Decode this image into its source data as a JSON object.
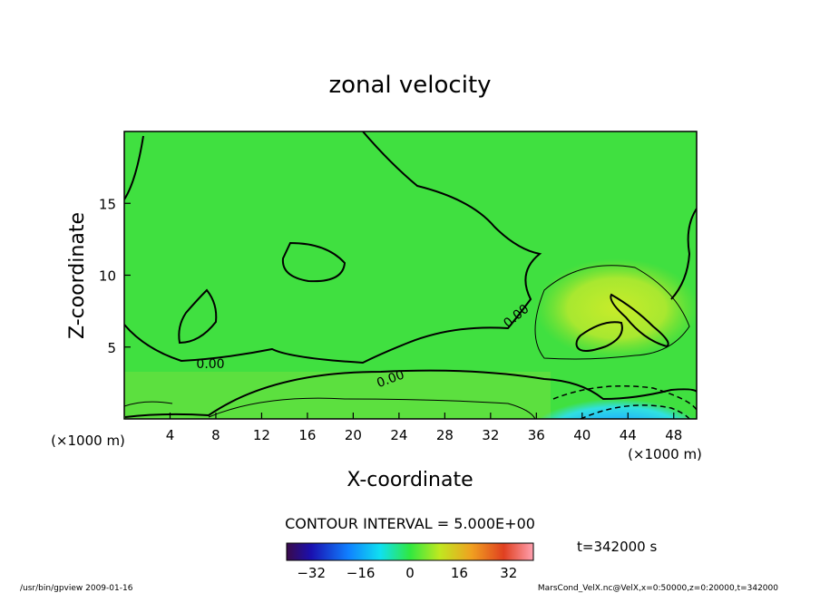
{
  "chart_data": {
    "type": "heatmap",
    "title": "zonal velocity",
    "xlabel": "X-coordinate",
    "ylabel": "Z-coordinate",
    "x_unit": "(×1000 m)",
    "y_unit": "(×1000 m)",
    "xlim": [
      0,
      50
    ],
    "ylim": [
      0,
      20
    ],
    "x_ticks": [
      "4",
      "8",
      "12",
      "16",
      "20",
      "24",
      "28",
      "32",
      "36",
      "40",
      "44",
      "48"
    ],
    "y_ticks": [
      "5",
      "10",
      "15"
    ],
    "contour_labels": [
      "0.00",
      "0.00",
      "0.00"
    ],
    "contour_interval_text": "CONTOUR INTERVAL = 5.000E+00",
    "colorbar": {
      "range": [
        -40,
        40
      ],
      "ticks": [
        "−32",
        "−16",
        "0",
        "16",
        "32"
      ]
    },
    "time_text": "t=342000 s",
    "footer_left": "/usr/bin/gpview  2009-01-16",
    "footer_right": "MarsCond_VelX.nc@VelX,x=0:50000,z=0:20000,t=342000"
  }
}
